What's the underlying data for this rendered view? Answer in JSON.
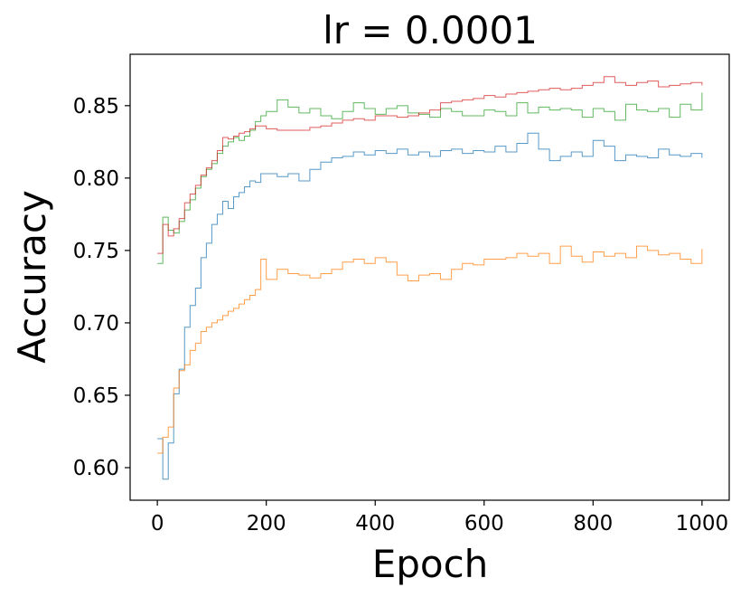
{
  "chart_data": {
    "type": "line",
    "title": "lr = 0.0001",
    "xlabel": "Epoch",
    "ylabel": "Accuracy",
    "xlim": [
      -50,
      1050
    ],
    "ylim": [
      0.5775,
      0.8855
    ],
    "grid": false,
    "legend": "none",
    "xticks": [
      {
        "value": 0,
        "label": "0"
      },
      {
        "value": 200,
        "label": "200"
      },
      {
        "value": 400,
        "label": "400"
      },
      {
        "value": 600,
        "label": "600"
      },
      {
        "value": 800,
        "label": "800"
      },
      {
        "value": 1000,
        "label": "1000"
      }
    ],
    "yticks": [
      {
        "value": 0.6,
        "label": "0.60"
      },
      {
        "value": 0.65,
        "label": "0.65"
      },
      {
        "value": 0.7,
        "label": "0.70"
      },
      {
        "value": 0.75,
        "label": "0.75"
      },
      {
        "value": 0.8,
        "label": "0.80"
      },
      {
        "value": 0.85,
        "label": "0.85"
      }
    ],
    "series": [
      {
        "color": "#1f77b4",
        "step": true,
        "x": [
          0,
          10,
          20,
          30,
          40,
          50,
          60,
          70,
          80,
          90,
          100,
          110,
          120,
          130,
          140,
          150,
          160,
          170,
          180,
          190,
          200,
          220,
          240,
          260,
          280,
          300,
          320,
          340,
          360,
          380,
          400,
          420,
          440,
          460,
          480,
          500,
          520,
          540,
          560,
          580,
          600,
          620,
          640,
          660,
          680,
          700,
          720,
          740,
          760,
          780,
          800,
          820,
          840,
          860,
          880,
          900,
          920,
          940,
          960,
          980,
          1000
        ],
        "y": [
          0.62,
          0.592,
          0.617,
          0.651,
          0.668,
          0.697,
          0.712,
          0.724,
          0.745,
          0.755,
          0.768,
          0.775,
          0.784,
          0.779,
          0.787,
          0.79,
          0.794,
          0.798,
          0.797,
          0.803,
          0.803,
          0.801,
          0.803,
          0.798,
          0.806,
          0.811,
          0.814,
          0.815,
          0.818,
          0.816,
          0.819,
          0.817,
          0.82,
          0.816,
          0.818,
          0.815,
          0.819,
          0.82,
          0.817,
          0.819,
          0.818,
          0.822,
          0.818,
          0.824,
          0.831,
          0.82,
          0.812,
          0.815,
          0.818,
          0.815,
          0.826,
          0.822,
          0.812,
          0.816,
          0.815,
          0.814,
          0.82,
          0.816,
          0.815,
          0.817,
          0.814
        ]
      },
      {
        "color": "#ff7f0e",
        "step": true,
        "x": [
          0,
          10,
          20,
          30,
          40,
          50,
          60,
          70,
          80,
          90,
          100,
          110,
          120,
          130,
          140,
          150,
          160,
          170,
          180,
          190,
          200,
          220,
          240,
          260,
          280,
          300,
          320,
          340,
          360,
          380,
          400,
          420,
          440,
          460,
          480,
          500,
          520,
          540,
          560,
          580,
          600,
          620,
          640,
          660,
          680,
          700,
          720,
          740,
          760,
          780,
          800,
          820,
          840,
          860,
          880,
          900,
          920,
          940,
          960,
          980,
          1000
        ],
        "y": [
          0.61,
          0.621,
          0.628,
          0.655,
          0.667,
          0.671,
          0.681,
          0.686,
          0.694,
          0.697,
          0.7,
          0.702,
          0.705,
          0.708,
          0.71,
          0.713,
          0.716,
          0.719,
          0.723,
          0.744,
          0.73,
          0.737,
          0.734,
          0.733,
          0.731,
          0.734,
          0.737,
          0.742,
          0.744,
          0.741,
          0.745,
          0.742,
          0.733,
          0.729,
          0.733,
          0.734,
          0.73,
          0.737,
          0.741,
          0.74,
          0.744,
          0.744,
          0.745,
          0.748,
          0.746,
          0.748,
          0.741,
          0.753,
          0.746,
          0.742,
          0.749,
          0.746,
          0.748,
          0.745,
          0.753,
          0.75,
          0.747,
          0.748,
          0.744,
          0.741,
          0.751
        ]
      },
      {
        "color": "#2ca02c",
        "step": true,
        "x": [
          0,
          10,
          20,
          30,
          40,
          50,
          60,
          70,
          80,
          90,
          100,
          110,
          120,
          130,
          140,
          150,
          160,
          170,
          180,
          190,
          200,
          220,
          240,
          260,
          280,
          300,
          320,
          340,
          360,
          380,
          400,
          420,
          440,
          460,
          480,
          500,
          520,
          540,
          560,
          580,
          600,
          620,
          640,
          660,
          680,
          700,
          720,
          740,
          760,
          780,
          800,
          820,
          840,
          860,
          880,
          900,
          920,
          940,
          960,
          980,
          1000
        ],
        "y": [
          0.741,
          0.773,
          0.764,
          0.762,
          0.77,
          0.778,
          0.785,
          0.793,
          0.801,
          0.806,
          0.81,
          0.817,
          0.822,
          0.825,
          0.828,
          0.826,
          0.829,
          0.833,
          0.839,
          0.843,
          0.846,
          0.854,
          0.849,
          0.845,
          0.848,
          0.843,
          0.841,
          0.846,
          0.852,
          0.848,
          0.844,
          0.848,
          0.85,
          0.845,
          0.844,
          0.842,
          0.848,
          0.846,
          0.843,
          0.843,
          0.847,
          0.846,
          0.843,
          0.852,
          0.845,
          0.849,
          0.847,
          0.848,
          0.847,
          0.842,
          0.848,
          0.846,
          0.84,
          0.851,
          0.847,
          0.846,
          0.848,
          0.842,
          0.851,
          0.847,
          0.859
        ]
      },
      {
        "color": "#d62728",
        "step": true,
        "x": [
          0,
          10,
          20,
          30,
          40,
          50,
          60,
          70,
          80,
          90,
          100,
          110,
          120,
          130,
          140,
          150,
          160,
          170,
          180,
          190,
          200,
          220,
          240,
          260,
          280,
          300,
          320,
          340,
          360,
          380,
          400,
          420,
          440,
          460,
          480,
          500,
          520,
          540,
          560,
          580,
          600,
          620,
          640,
          660,
          680,
          700,
          720,
          740,
          760,
          780,
          800,
          820,
          840,
          860,
          880,
          900,
          920,
          940,
          960,
          980,
          1000
        ],
        "y": [
          0.748,
          0.768,
          0.76,
          0.765,
          0.772,
          0.783,
          0.789,
          0.795,
          0.802,
          0.807,
          0.812,
          0.819,
          0.828,
          0.827,
          0.829,
          0.831,
          0.832,
          0.834,
          0.836,
          0.836,
          0.834,
          0.833,
          0.833,
          0.833,
          0.835,
          0.836,
          0.838,
          0.84,
          0.841,
          0.84,
          0.843,
          0.843,
          0.842,
          0.843,
          0.845,
          0.847,
          0.852,
          0.853,
          0.854,
          0.855,
          0.857,
          0.856,
          0.858,
          0.859,
          0.86,
          0.861,
          0.862,
          0.861,
          0.862,
          0.864,
          0.866,
          0.87,
          0.866,
          0.864,
          0.866,
          0.867,
          0.863,
          0.864,
          0.865,
          0.866,
          0.864
        ]
      }
    ]
  }
}
